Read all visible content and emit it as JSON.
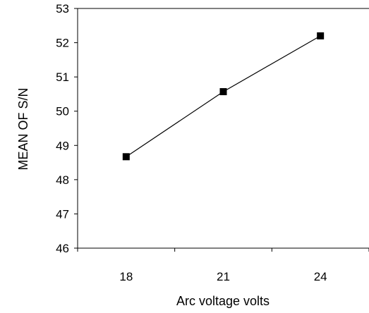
{
  "chart_data": {
    "type": "line",
    "title": "",
    "xlabel": "Arc voltage volts",
    "ylabel": "MEAN OF S/N",
    "categories": [
      "18",
      "21",
      "24"
    ],
    "series": [
      {
        "values": [
          48.67,
          50.57,
          52.2
        ]
      }
    ],
    "ylim": [
      46,
      53
    ],
    "yticks": [
      "46",
      "47",
      "48",
      "49",
      "50",
      "51",
      "52",
      "53"
    ],
    "grid": false,
    "legend": "none",
    "colors": {
      "line": "#000000",
      "marker": "#000000"
    }
  }
}
